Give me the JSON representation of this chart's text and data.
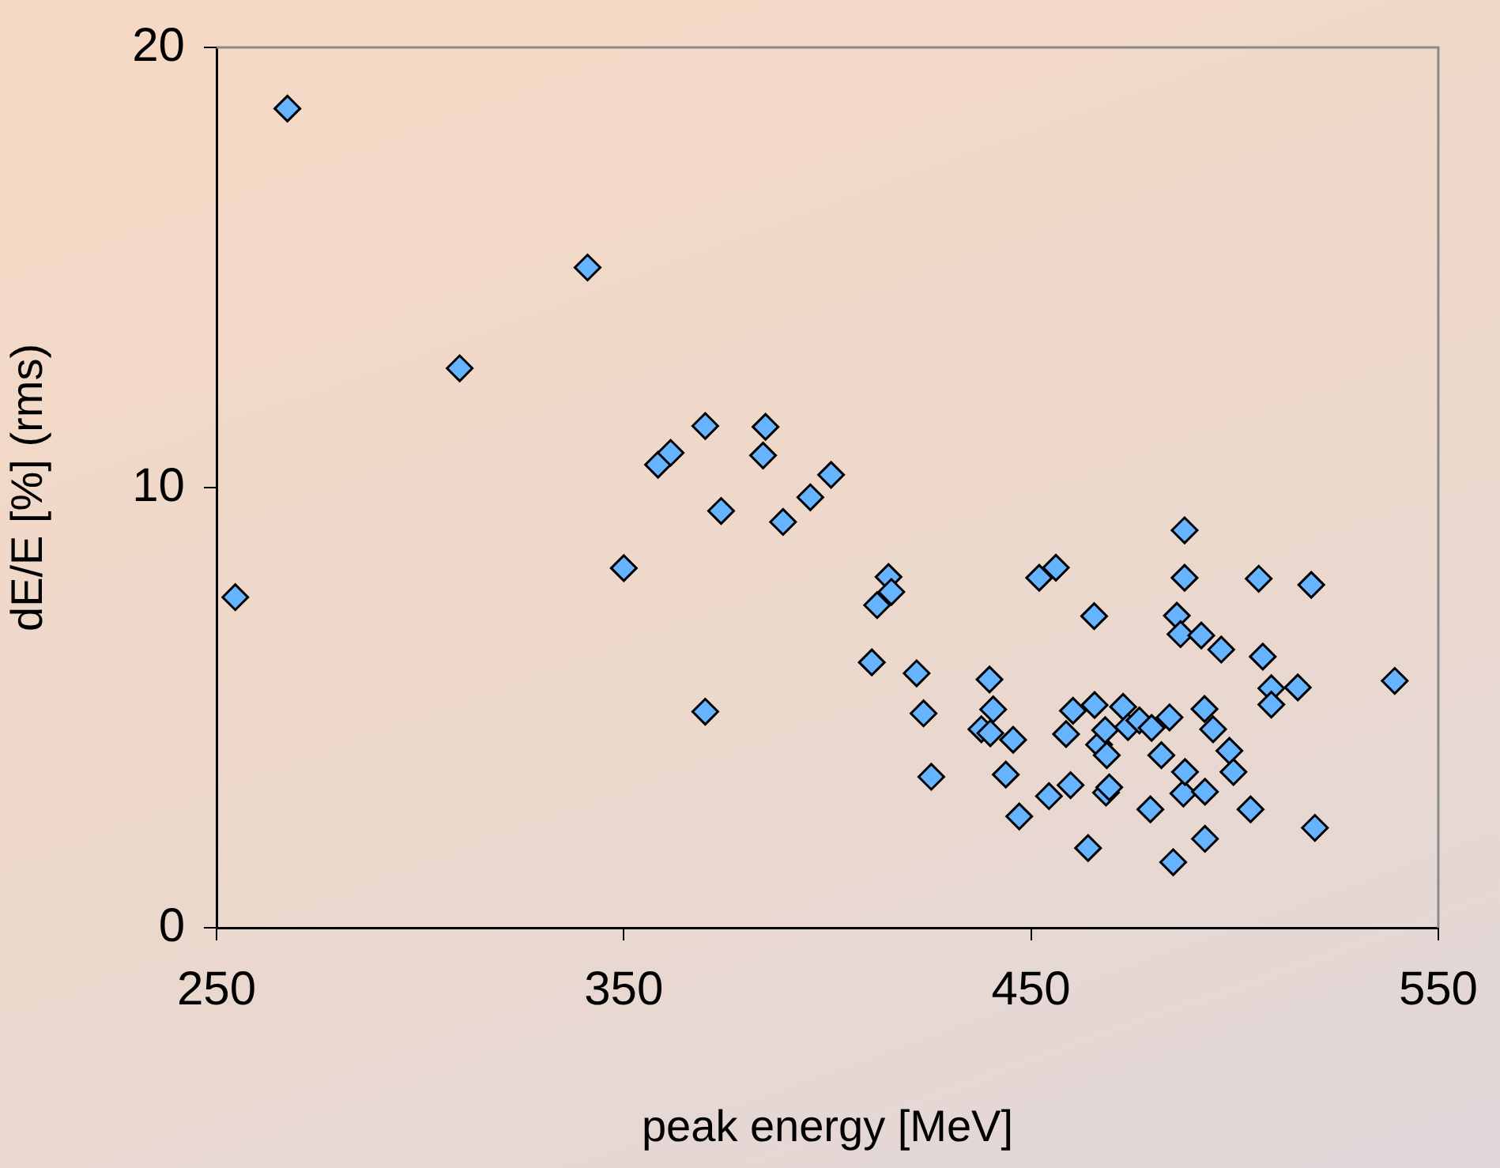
{
  "chart_data": {
    "type": "scatter",
    "xlabel": "peak energy [MeV]",
    "ylabel": "dE/E [%] (rms)",
    "xlim": [
      250,
      550
    ],
    "xticks": [
      250,
      350,
      450,
      550
    ],
    "ylim": [
      0,
      20
    ],
    "yticks": [
      0,
      10,
      20
    ],
    "grid": false,
    "legend": false,
    "marker": "diamond",
    "series": [
      {
        "color": "#66b3ff",
        "x": [
          254.6,
          267.4,
          309.7,
          341.1,
          350.0,
          358.4,
          361.5,
          370.0,
          370.0,
          373.9,
          384.8,
          384.2,
          389.1,
          395.8,
          400.9,
          410.9,
          412.2,
          415.0,
          415.7,
          421.9,
          423.6,
          425.5,
          437.8,
          439.8,
          440.0,
          440.7,
          443.8,
          445.6,
          447.1,
          452.0,
          454.4,
          456.1,
          458.6,
          459.7,
          460.3,
          464.0,
          465.5,
          465.6,
          466.7,
          468.2,
          468.4,
          468.6,
          469.2,
          472.6,
          473.8,
          476.6,
          479.3,
          479.6,
          482.0,
          484.0,
          484.9,
          485.8,
          486.7,
          487.4,
          487.7,
          487.7,
          487.8,
          491.8,
          492.6,
          492.7,
          492.7,
          494.7,
          496.7,
          498.7,
          499.7,
          503.9,
          505.9,
          506.9,
          509.0,
          509.0,
          515.5,
          518.8,
          519.7,
          539.3
        ],
        "values": [
          7.51,
          18.61,
          12.71,
          15.0,
          8.17,
          10.52,
          10.79,
          11.4,
          4.91,
          9.47,
          11.38,
          10.73,
          9.22,
          9.78,
          10.29,
          6.03,
          7.33,
          7.97,
          7.63,
          5.78,
          4.87,
          3.43,
          4.51,
          5.64,
          4.42,
          4.96,
          3.48,
          4.27,
          2.53,
          7.95,
          2.99,
          8.18,
          4.4,
          3.24,
          4.93,
          1.81,
          7.08,
          5.06,
          4.16,
          4.49,
          3.07,
          3.92,
          3.19,
          5.02,
          4.56,
          4.71,
          2.69,
          4.54,
          3.92,
          4.78,
          1.49,
          7.09,
          6.67,
          3.05,
          9.03,
          7.95,
          3.54,
          6.64,
          4.97,
          3.09,
          2.02,
          4.51,
          6.32,
          4.02,
          3.54,
          2.69,
          7.93,
          6.16,
          5.44,
          5.07,
          5.46,
          7.79,
          2.27,
          5.61
        ]
      }
    ]
  }
}
